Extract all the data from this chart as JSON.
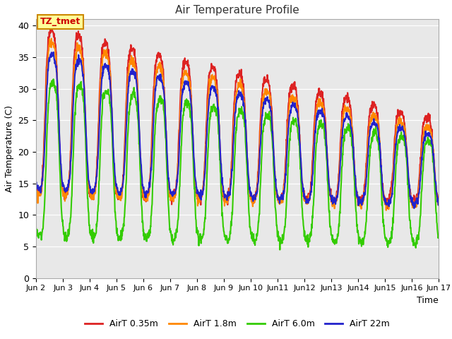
{
  "title": "Air Temperature Profile",
  "xlabel": "Time",
  "ylabel": "Air Temperature (C)",
  "ylim": [
    0,
    41
  ],
  "bg_color": "#e8e8e8",
  "annotation_text": "TZ_tmet",
  "annotation_bg": "#ffff99",
  "annotation_border": "#cc8800",
  "annotation_text_color": "#cc0000",
  "series_labels": [
    "AirT 0.35m",
    "AirT 1.8m",
    "AirT 6.0m",
    "AirT 22m"
  ],
  "series_colors": [
    "#dd2222",
    "#ff8800",
    "#33cc00",
    "#2222cc"
  ],
  "series_lw": [
    1.5,
    1.5,
    1.5,
    1.5
  ],
  "xtick_labels": [
    "Jun 2",
    "Jun 3",
    "Jun 4",
    "Jun 5",
    "Jun 6",
    "Jun 7",
    "Jun 8",
    "Jun 9",
    "Jun 10",
    "Jun11",
    "Jun12",
    "Jun13",
    "Jun14",
    "Jun15",
    "Jun16",
    "Jun 17"
  ],
  "xtick_positions": [
    2,
    3,
    4,
    5,
    6,
    7,
    8,
    9,
    10,
    11,
    12,
    13,
    14,
    15,
    16,
    17
  ],
  "xlim": [
    2,
    17
  ]
}
